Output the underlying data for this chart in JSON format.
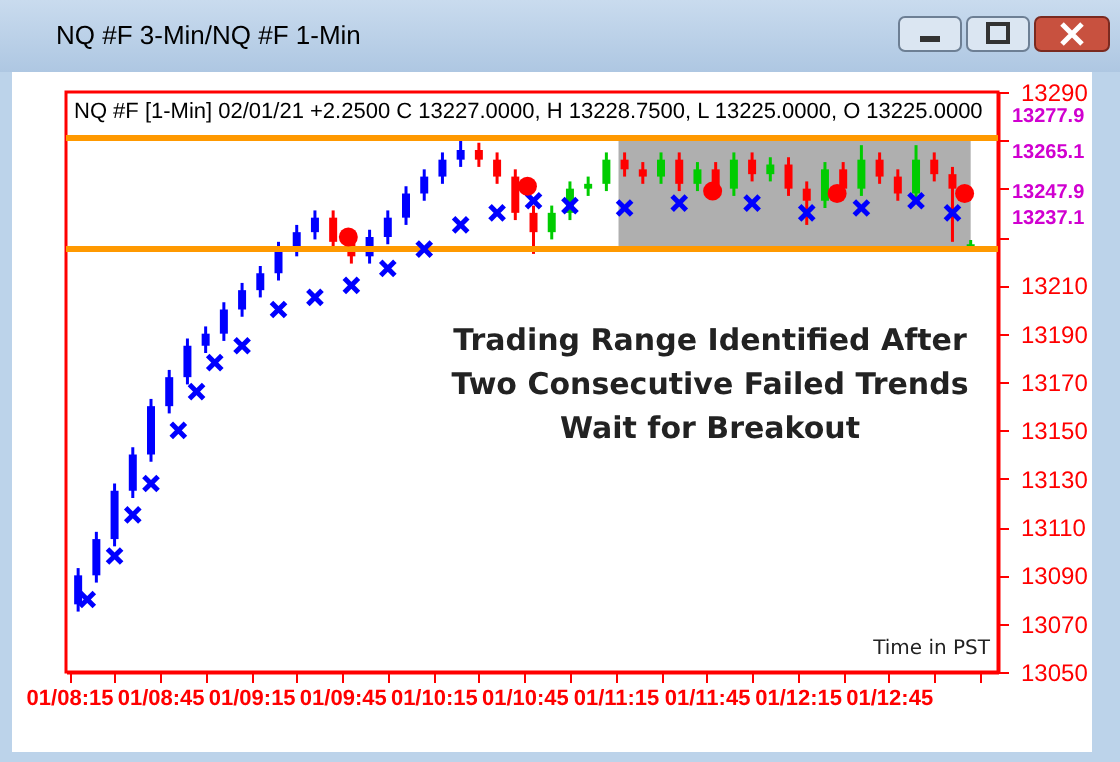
{
  "chart_data": {
    "type": "candlestick",
    "title": "NQ #F 3-Min/NQ #F 1-Min",
    "subtitle": "NQ #F [1-Min] 02/01/21  +2.2500 C 13227.0000, H 13228.7500, L 13225.0000, O 13225.0000",
    "x": [
      "--02-01T08:18",
      "--02-01T08:24",
      "--02-01T08:30",
      "--02-01T08:36",
      "--02-01T08:42",
      "--02-01T08:48",
      "--02-01T08:54",
      "--02-01T09:00",
      "--02-01T09:06",
      "--02-01T09:12",
      "--02-01T09:18",
      "--02-01T09:24",
      "--02-01T09:30",
      "--02-01T09:36",
      "--02-01T09:42",
      "--02-01T09:48",
      "--02-01T09:54",
      "--02-01T10:00",
      "--02-01T10:06",
      "--02-01T10:12",
      "--02-01T10:18",
      "--02-01T10:24",
      "--02-01T10:30",
      "--02-01T10:36",
      "--02-01T10:42",
      "--02-01T10:48",
      "--02-01T10:54",
      "--02-01T11:00",
      "--02-01T11:06",
      "--02-01T11:12",
      "--02-01T11:18",
      "--02-01T11:24",
      "--02-01T11:30",
      "--02-01T11:36",
      "--02-01T11:42",
      "--02-01T11:48",
      "--02-01T11:54",
      "--02-01T12:00",
      "--02-01T12:06",
      "--02-01T12:12",
      "--02-01T12:18",
      "--02-01T12:24",
      "--02-01T12:30",
      "--02-01T12:36",
      "--02-01T12:42",
      "--02-01T12:48",
      "--02-01T12:54",
      "--02-01T13:00",
      "--02-01T13:06",
      "--02-01T13:12"
    ],
    "ohlc": [
      [
        13078,
        13093,
        13075,
        13090
      ],
      [
        13090,
        13108,
        13087,
        13105
      ],
      [
        13105,
        13128,
        13102,
        13125
      ],
      [
        13125,
        13143,
        13122,
        13140
      ],
      [
        13140,
        13163,
        13137,
        13160
      ],
      [
        13160,
        13175,
        13157,
        13172
      ],
      [
        13172,
        13188,
        13169,
        13185
      ],
      [
        13185,
        13193,
        13182,
        13190
      ],
      [
        13190,
        13203,
        13187,
        13200
      ],
      [
        13200,
        13211,
        13197,
        13208
      ],
      [
        13208,
        13218,
        13205,
        13215
      ],
      [
        13215,
        13228,
        13212,
        13225
      ],
      [
        13225,
        13235,
        13222,
        13232
      ],
      [
        13232,
        13241,
        13229,
        13238
      ],
      [
        13238,
        13241,
        13225,
        13228
      ],
      [
        13228,
        13231,
        13219,
        13222
      ],
      [
        13222,
        13233,
        13219,
        13230
      ],
      [
        13230,
        13241,
        13227,
        13238
      ],
      [
        13238,
        13251,
        13235,
        13248
      ],
      [
        13248,
        13258,
        13245,
        13255
      ],
      [
        13255,
        13265,
        13252,
        13262
      ],
      [
        13262,
        13271,
        13259,
        13266
      ],
      [
        13266,
        13269,
        13259,
        13262
      ],
      [
        13262,
        13265,
        13252,
        13255
      ],
      [
        13255,
        13258,
        13237,
        13240
      ],
      [
        13240,
        13243,
        13223,
        13232
      ],
      [
        13232,
        13243,
        13229,
        13240
      ],
      [
        13240,
        13253,
        13237,
        13250
      ],
      [
        13250,
        13255,
        13247,
        13252
      ],
      [
        13252,
        13265,
        13249,
        13262
      ],
      [
        13262,
        13265,
        13255,
        13258
      ],
      [
        13258,
        13261,
        13252,
        13255
      ],
      [
        13255,
        13265,
        13252,
        13262
      ],
      [
        13262,
        13265,
        13249,
        13252
      ],
      [
        13252,
        13261,
        13249,
        13258
      ],
      [
        13258,
        13261,
        13247,
        13250
      ],
      [
        13250,
        13265,
        13247,
        13262
      ],
      [
        13262,
        13265,
        13253,
        13256
      ],
      [
        13256,
        13263,
        13253,
        13260
      ],
      [
        13260,
        13263,
        13247,
        13250
      ],
      [
        13250,
        13253,
        13235,
        13245
      ],
      [
        13245,
        13261,
        13242,
        13258
      ],
      [
        13258,
        13261,
        13247,
        13250
      ],
      [
        13250,
        13268,
        13247,
        13262
      ],
      [
        13262,
        13265,
        13252,
        13255
      ],
      [
        13255,
        13258,
        13245,
        13248
      ],
      [
        13248,
        13268,
        13245,
        13262
      ],
      [
        13262,
        13265,
        13253,
        13256
      ],
      [
        13256,
        13259,
        13228,
        13250
      ],
      [
        13225,
        13228.75,
        13225,
        13227
      ]
    ],
    "colors": [
      "#0000ff",
      "#0000ff",
      "#0000ff",
      "#0000ff",
      "#0000ff",
      "#0000ff",
      "#0000ff",
      "#0000ff",
      "#0000ff",
      "#0000ff",
      "#0000ff",
      "#0000ff",
      "#0000ff",
      "#0000ff",
      "#ff0000",
      "#ff0000",
      "#0000ff",
      "#0000ff",
      "#0000ff",
      "#0000ff",
      "#0000ff",
      "#0000ff",
      "#ff0000",
      "#ff0000",
      "#ff0000",
      "#ff0000",
      "#00cc00",
      "#00cc00",
      "#00cc00",
      "#00cc00",
      "#ff0000",
      "#ff0000",
      "#00cc00",
      "#ff0000",
      "#00cc00",
      "#ff0000",
      "#00cc00",
      "#ff0000",
      "#00cc00",
      "#ff0000",
      "#ff0000",
      "#00cc00",
      "#ff0000",
      "#00cc00",
      "#ff0000",
      "#ff0000",
      "#00cc00",
      "#ff0000",
      "#ff0000",
      "#00cc00"
    ],
    "series": [
      {
        "type": "scatter",
        "marker": "cross",
        "color": "#0000ff",
        "x": [
          "--02-01T08:21",
          "--02-01T08:30",
          "--02-01T08:36",
          "--02-01T08:42",
          "--02-01T08:51",
          "--02-01T08:57",
          "--02-01T09:03",
          "--02-01T09:12",
          "--02-01T09:24",
          "--02-01T09:36",
          "--02-01T09:48",
          "--02-01T10:00",
          "--02-01T10:12",
          "--02-01T10:24",
          "--02-01T10:36",
          "--02-01T10:48",
          "--02-01T11:00",
          "--02-01T11:18",
          "--02-01T11:36",
          "--02-01T12:00",
          "--02-01T12:18",
          "--02-01T12:36",
          "--02-01T12:54",
          "--02-01T13:06"
        ],
        "values": [
          13080,
          13098,
          13115,
          13128,
          13150,
          13166,
          13178,
          13185,
          13200,
          13205,
          13210,
          13217,
          13225,
          13235,
          13240,
          13245,
          13243,
          13242,
          13244,
          13244,
          13240,
          13242,
          13245,
          13240
        ]
      },
      {
        "type": "scatter",
        "marker": "circle",
        "color": "#ff0000",
        "x": [
          "--02-01T09:47",
          "--02-01T10:46",
          "--02-01T11:47",
          "--02-01T12:28",
          "--02-01T13:10"
        ],
        "values": [
          13230,
          13251,
          13249,
          13248,
          13248
        ]
      }
    ],
    "xlim": [
      "--02-01T08:14",
      "--02-01T13:21"
    ],
    "ylim": [
      13050,
      13290
    ],
    "xticks": [
      {
        "value": "--02-01T08:15",
        "label": "01/08:15"
      },
      {
        "value": "--02-01T08:30",
        "label": null
      },
      {
        "value": "--02-01T08:45",
        "label": "01/08:45"
      },
      {
        "value": "--02-01T09:00",
        "label": null
      },
      {
        "value": "--02-01T09:15",
        "label": "01/09:15"
      },
      {
        "value": "--02-01T09:30",
        "label": null
      },
      {
        "value": "--02-01T09:45",
        "label": "01/09:45"
      },
      {
        "value": "--02-01T10:00",
        "label": null
      },
      {
        "value": "--02-01T10:15",
        "label": "01/10:15"
      },
      {
        "value": "--02-01T10:30",
        "label": null
      },
      {
        "value": "--02-01T10:45",
        "label": "01/10:45"
      },
      {
        "value": "--02-01T11:00",
        "label": null
      },
      {
        "value": "--02-01T11:15",
        "label": "01/11:15"
      },
      {
        "value": "--02-01T11:30",
        "label": null
      },
      {
        "value": "--02-01T11:45",
        "label": "01/11:45"
      },
      {
        "value": "--02-01T12:00",
        "label": null
      },
      {
        "value": "--02-01T12:15",
        "label": "01/12:15"
      },
      {
        "value": "--02-01T12:30",
        "label": null
      },
      {
        "value": "--02-01T12:45",
        "label": "01/12:45"
      },
      {
        "value": "--02-01T13:00",
        "label": null
      },
      {
        "value": "--02-01T13:15",
        "label": null
      }
    ],
    "yticks": [
      13050,
      13070,
      13090,
      13110,
      13130,
      13150,
      13170,
      13190,
      13210,
      {
        "value": 13230,
        "label": null
      },
      {
        "value": 13250,
        "label": null
      },
      {
        "value": 13270,
        "label": null
      },
      13290
    ],
    "ref_lines": [
      {
        "axis": "y",
        "value": 13271,
        "color": "#ff9900"
      },
      {
        "axis": "y",
        "value": 13225,
        "color": "#ff9900"
      }
    ],
    "bands": [
      {
        "axis": "x",
        "from": "--02-01T11:16",
        "to": "--02-01T13:12",
        "color": "#a6a6a6"
      }
    ],
    "annotations": [
      "Trading Range Identified After\nTwo Consecutive Failed Trends\nWait for Breakout",
      "Time in PST",
      "13277.9",
      "13265.1",
      "13247.9",
      "13237.1"
    ]
  }
}
